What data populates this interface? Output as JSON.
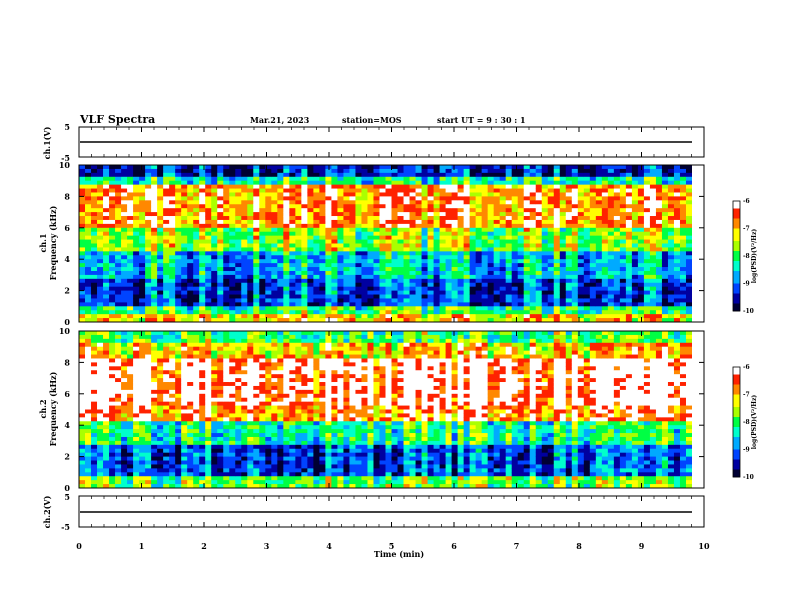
{
  "header": {
    "title": "VLF Spectra",
    "date": "Mar.21, 2023",
    "station": "station=MOS",
    "start": "start  UT =   9 : 30 : 1"
  },
  "colors": {
    "scale": [
      "#000033",
      "#0000a0",
      "#0044ff",
      "#00aaff",
      "#00ffcc",
      "#00ff44",
      "#aaff00",
      "#ffff00",
      "#ff8800",
      "#ff2200",
      "#ffffff"
    ]
  },
  "chart_data": [
    {
      "type": "line",
      "panel": "ch1-amplitude",
      "ylabel": "ch.1(V)",
      "ylim": [
        -5,
        5
      ],
      "yticks": [
        "5",
        "-5"
      ],
      "xlim": [
        0,
        10
      ],
      "series": [
        {
          "x": [
            0,
            9.8
          ],
          "y": [
            0,
            0
          ]
        }
      ]
    },
    {
      "type": "heatmap",
      "panel": "ch1-spectrogram",
      "ylabel": "ch.1\nFrequency (kHz)",
      "ylabel_lines": [
        "ch.1",
        "Frequency (kHz)"
      ],
      "ylim": [
        0,
        10
      ],
      "yticks": [
        "0",
        "2",
        "4",
        "6",
        "8",
        "10"
      ],
      "xlim": [
        0,
        10
      ],
      "bands": [
        {
          "from": 0,
          "to": 0.5,
          "level": 0.75
        },
        {
          "from": 0.5,
          "to": 1.0,
          "level": 0.5
        },
        {
          "from": 1.0,
          "to": 2.8,
          "level": 0.2
        },
        {
          "from": 2.8,
          "to": 4.5,
          "level": 0.35
        },
        {
          "from": 4.5,
          "to": 6.0,
          "level": 0.6
        },
        {
          "from": 6.0,
          "to": 8.8,
          "level": 0.85
        },
        {
          "from": 8.8,
          "to": 9.3,
          "level": 0.45
        },
        {
          "from": 9.3,
          "to": 10,
          "level": 0.15
        }
      ],
      "colorbar": {
        "label": "log(PSD)(V²/Hz)",
        "ticks": [
          "-6",
          "-7",
          "-8",
          "-9",
          "-10"
        ],
        "range": [
          -10,
          -6
        ]
      }
    },
    {
      "type": "heatmap",
      "panel": "ch2-spectrogram",
      "ylabel": "ch.2\nFrequency (kHz)",
      "ylabel_lines": [
        "ch.2",
        "Frequency (kHz)"
      ],
      "ylim": [
        0,
        10
      ],
      "yticks": [
        "0",
        "2",
        "4",
        "6",
        "8",
        "10"
      ],
      "xlim": [
        0,
        10
      ],
      "bands": [
        {
          "from": 0,
          "to": 0.8,
          "level": 0.55
        },
        {
          "from": 0.8,
          "to": 2.8,
          "level": 0.2
        },
        {
          "from": 2.8,
          "to": 4.2,
          "level": 0.45
        },
        {
          "from": 4.2,
          "to": 5.2,
          "level": 0.85
        },
        {
          "from": 5.2,
          "to": 8.2,
          "level": 0.98
        },
        {
          "from": 8.2,
          "to": 9.2,
          "level": 0.75
        },
        {
          "from": 9.2,
          "to": 10,
          "level": 0.5
        }
      ],
      "colorbar": {
        "label": "log(PSD)(V²/Hz)",
        "ticks": [
          "-6",
          "-7",
          "-8",
          "-9",
          "-10"
        ],
        "range": [
          -10,
          -6
        ]
      }
    },
    {
      "type": "line",
      "panel": "ch2-amplitude",
      "ylabel": "ch.2(V)",
      "ylim": [
        -5,
        5
      ],
      "yticks": [
        "5",
        "-5"
      ],
      "xlim": [
        0,
        10
      ],
      "series": [
        {
          "x": [
            0,
            9.8
          ],
          "y": [
            0,
            0
          ]
        }
      ]
    }
  ],
  "xaxis": {
    "label": "Time (min)",
    "ticks": [
      "0",
      "1",
      "2",
      "3",
      "4",
      "5",
      "6",
      "7",
      "8",
      "9",
      "10"
    ]
  }
}
